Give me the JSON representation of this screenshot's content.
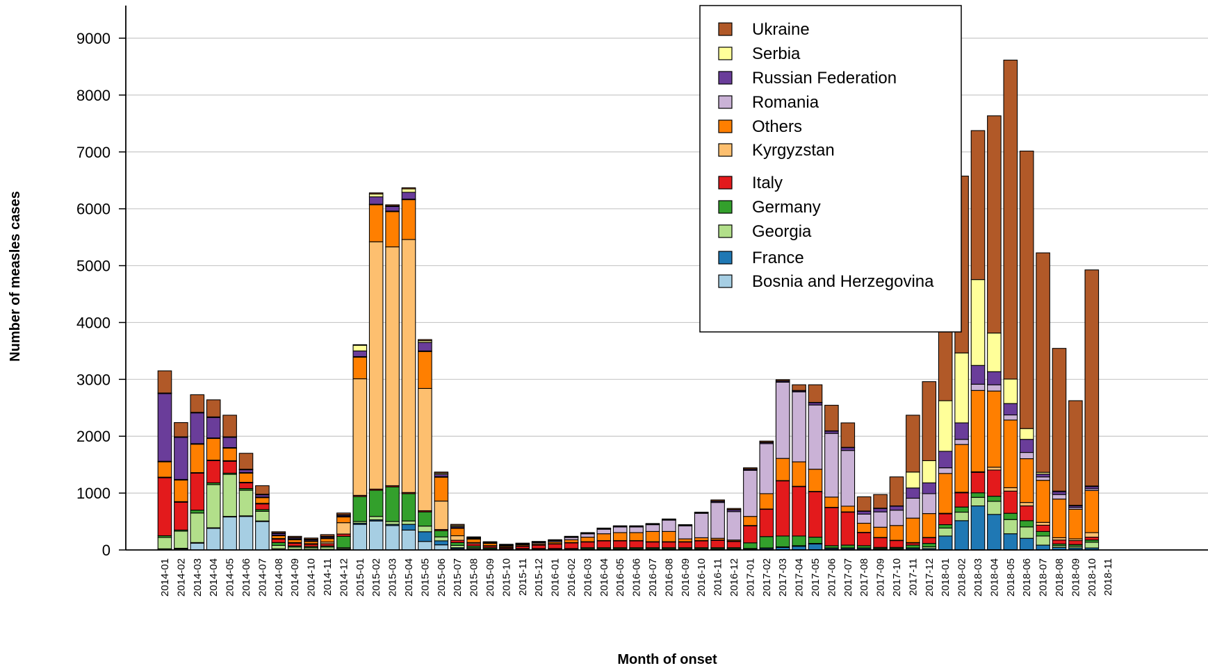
{
  "chart_data": {
    "type": "bar",
    "stacked": true,
    "ylabel": "Number of measles cases",
    "xlabel": "Month of onset",
    "ylim": [
      0,
      9000
    ],
    "yticks": [
      0,
      1000,
      2000,
      3000,
      4000,
      5000,
      6000,
      7000,
      8000,
      9000
    ],
    "grid": "horizontal",
    "legend_position": "top-right",
    "categories": [
      "2014-01",
      "2014-02",
      "2014-03",
      "2014-04",
      "2014-05",
      "2014-06",
      "2014-07",
      "2014-08",
      "2014-09",
      "2014-10",
      "2014-11",
      "2014-12",
      "2015-01",
      "2015-02",
      "2015-03",
      "2015-04",
      "2015-05",
      "2015-06",
      "2015-07",
      "2015-08",
      "2015-09",
      "2015-10",
      "2015-11",
      "2015-12",
      "2016-01",
      "2016-02",
      "2016-03",
      "2016-04",
      "2016-05",
      "2016-06",
      "2016-07",
      "2016-08",
      "2016-09",
      "2016-10",
      "2016-11",
      "2016-12",
      "2017-01",
      "2017-02",
      "2017-03",
      "2017-04",
      "2017-05",
      "2017-06",
      "2017-07",
      "2017-08",
      "2017-09",
      "2017-10",
      "2017-11",
      "2017-12",
      "2018-01",
      "2018-02",
      "2018-03",
      "2018-04",
      "2018-05",
      "2018-06",
      "2018-07",
      "2018-08",
      "2018-09",
      "2018-10",
      "2018-11"
    ],
    "series": [
      {
        "name": "Bosnia and Herzegovina",
        "color": "#a6cee3",
        "values": [
          10,
          20,
          120,
          380,
          580,
          590,
          500,
          10,
          5,
          5,
          5,
          10,
          450,
          510,
          430,
          350,
          150,
          90,
          20,
          10,
          5,
          5,
          5,
          5,
          5,
          5,
          5,
          5,
          5,
          5,
          5,
          5,
          5,
          5,
          5,
          5,
          5,
          5,
          5,
          5,
          5,
          5,
          5,
          5,
          5,
          5,
          5,
          5,
          5,
          5,
          5,
          5,
          5,
          5,
          5,
          5,
          5,
          5,
          0
        ]
      },
      {
        "name": "France",
        "color": "#1f78b4",
        "values": [
          10,
          10,
          10,
          10,
          10,
          10,
          10,
          10,
          5,
          5,
          5,
          10,
          20,
          20,
          20,
          100,
          170,
          70,
          20,
          10,
          5,
          5,
          5,
          5,
          5,
          5,
          10,
          10,
          10,
          10,
          10,
          10,
          10,
          10,
          10,
          10,
          10,
          20,
          40,
          60,
          100,
          20,
          20,
          20,
          10,
          10,
          20,
          20,
          240,
          510,
          770,
          620,
          280,
          200,
          80,
          40,
          30,
          30,
          0
        ]
      },
      {
        "name": "Georgia",
        "color": "#b2df8a",
        "values": [
          200,
          300,
          520,
          760,
          740,
          450,
          170,
          60,
          40,
          30,
          40,
          20,
          30,
          60,
          50,
          60,
          100,
          70,
          40,
          20,
          10,
          5,
          5,
          5,
          5,
          5,
          5,
          5,
          5,
          5,
          5,
          5,
          5,
          5,
          5,
          5,
          10,
          10,
          10,
          10,
          10,
          10,
          10,
          10,
          10,
          10,
          10,
          30,
          140,
          150,
          150,
          230,
          250,
          200,
          160,
          30,
          30,
          100,
          0
        ]
      },
      {
        "name": "Germany",
        "color": "#33a02c",
        "values": [
          30,
          20,
          50,
          30,
          20,
          30,
          30,
          50,
          20,
          20,
          20,
          200,
          440,
          460,
          610,
          480,
          250,
          110,
          50,
          30,
          20,
          10,
          10,
          10,
          10,
          10,
          20,
          20,
          20,
          20,
          20,
          20,
          20,
          20,
          20,
          20,
          100,
          200,
          190,
          170,
          110,
          40,
          50,
          40,
          20,
          20,
          50,
          60,
          60,
          90,
          80,
          90,
          110,
          110,
          80,
          30,
          30,
          40,
          0
        ]
      },
      {
        "name": "Italy",
        "color": "#e31a1c",
        "values": [
          1020,
          490,
          650,
          390,
          210,
          100,
          100,
          60,
          50,
          40,
          40,
          40,
          20,
          20,
          20,
          20,
          20,
          20,
          40,
          40,
          30,
          20,
          40,
          60,
          80,
          100,
          100,
          120,
          120,
          120,
          100,
          100,
          100,
          120,
          130,
          110,
          300,
          480,
          970,
          870,
          800,
          670,
          580,
          230,
          170,
          120,
          40,
          100,
          190,
          250,
          360,
          460,
          390,
          260,
          110,
          70,
          70,
          50,
          0
        ]
      },
      {
        "name": "Kyrgyzstan",
        "color": "#fdbf6f",
        "values": [
          10,
          10,
          10,
          10,
          10,
          10,
          10,
          10,
          10,
          10,
          30,
          200,
          2050,
          4350,
          4200,
          4450,
          2150,
          500,
          80,
          20,
          5,
          5,
          5,
          5,
          5,
          5,
          5,
          5,
          5,
          5,
          5,
          5,
          5,
          5,
          5,
          5,
          5,
          5,
          5,
          5,
          5,
          5,
          5,
          5,
          5,
          5,
          5,
          5,
          10,
          10,
          10,
          50,
          60,
          60,
          50,
          40,
          30,
          80,
          0
        ]
      },
      {
        "name": "Others",
        "color": "#ff7f00",
        "values": [
          270,
          380,
          500,
          380,
          220,
          160,
          100,
          50,
          50,
          40,
          60,
          100,
          380,
          650,
          620,
          700,
          650,
          420,
          130,
          60,
          40,
          20,
          20,
          20,
          30,
          50,
          80,
          120,
          140,
          140,
          180,
          180,
          50,
          50,
          30,
          20,
          160,
          270,
          390,
          430,
          390,
          180,
          100,
          160,
          180,
          260,
          430,
          420,
          700,
          840,
          1430,
          1340,
          1190,
          770,
          740,
          680,
          520,
          740,
          0
        ]
      },
      {
        "name": "Romania",
        "color": "#cab2d6",
        "values": [
          10,
          10,
          10,
          10,
          10,
          10,
          10,
          10,
          10,
          10,
          10,
          10,
          10,
          10,
          10,
          10,
          10,
          10,
          10,
          10,
          10,
          10,
          10,
          20,
          20,
          40,
          60,
          80,
          100,
          100,
          120,
          200,
          230,
          430,
          630,
          500,
          810,
          880,
          1340,
          1230,
          1130,
          1120,
          980,
          160,
          270,
          270,
          350,
          350,
          100,
          90,
          110,
          110,
          90,
          110,
          60,
          80,
          30,
          30,
          0
        ]
      },
      {
        "name": "Russian Federation",
        "color": "#6a3d9a",
        "values": [
          1190,
          740,
          540,
          360,
          180,
          50,
          40,
          30,
          20,
          20,
          20,
          20,
          100,
          130,
          80,
          120,
          150,
          40,
          20,
          10,
          5,
          5,
          5,
          5,
          5,
          5,
          5,
          5,
          5,
          5,
          5,
          5,
          5,
          5,
          20,
          30,
          20,
          20,
          20,
          20,
          40,
          40,
          50,
          50,
          60,
          70,
          180,
          190,
          290,
          290,
          330,
          230,
          200,
          230,
          50,
          50,
          30,
          40,
          0
        ]
      },
      {
        "name": "Serbia",
        "color": "#ffff99",
        "values": [
          10,
          10,
          10,
          10,
          10,
          10,
          10,
          10,
          10,
          10,
          10,
          10,
          100,
          50,
          10,
          60,
          30,
          20,
          20,
          10,
          5,
          5,
          5,
          5,
          5,
          5,
          5,
          5,
          5,
          5,
          5,
          5,
          5,
          5,
          5,
          5,
          5,
          5,
          5,
          5,
          5,
          5,
          5,
          5,
          5,
          5,
          280,
          390,
          890,
          1230,
          1510,
          680,
          430,
          190,
          30,
          10,
          10,
          10,
          0
        ]
      },
      {
        "name": "Ukraine",
        "color": "#b15928",
        "values": [
          390,
          250,
          310,
          300,
          380,
          280,
          150,
          20,
          20,
          20,
          30,
          30,
          10,
          20,
          20,
          20,
          20,
          20,
          20,
          10,
          10,
          10,
          10,
          10,
          10,
          10,
          10,
          10,
          10,
          10,
          10,
          10,
          10,
          10,
          20,
          20,
          20,
          20,
          20,
          100,
          310,
          450,
          430,
          250,
          240,
          510,
          1000,
          1390,
          2930,
          3110,
          2620,
          3820,
          5610,
          4880,
          3860,
          2510,
          1840,
          3800,
          0
        ]
      }
    ]
  },
  "legend": {
    "items": [
      {
        "name": "Ukraine",
        "color": "#b15928"
      },
      {
        "name": "Serbia",
        "color": "#ffff99"
      },
      {
        "name": "Russian Federation",
        "color": "#6a3d9a"
      },
      {
        "name": "Romania",
        "color": "#cab2d6"
      },
      {
        "name": "Others",
        "color": "#ff7f00"
      },
      {
        "name": "Kyrgyzstan",
        "color": "#fdbf6f"
      },
      {
        "name": "Italy",
        "color": "#e31a1c"
      },
      {
        "name": "Germany",
        "color": "#33a02c"
      },
      {
        "name": "Georgia",
        "color": "#b2df8a"
      },
      {
        "name": "France",
        "color": "#1f78b4"
      },
      {
        "name": "Bosnia and Herzegovina",
        "color": "#a6cee3"
      }
    ]
  }
}
